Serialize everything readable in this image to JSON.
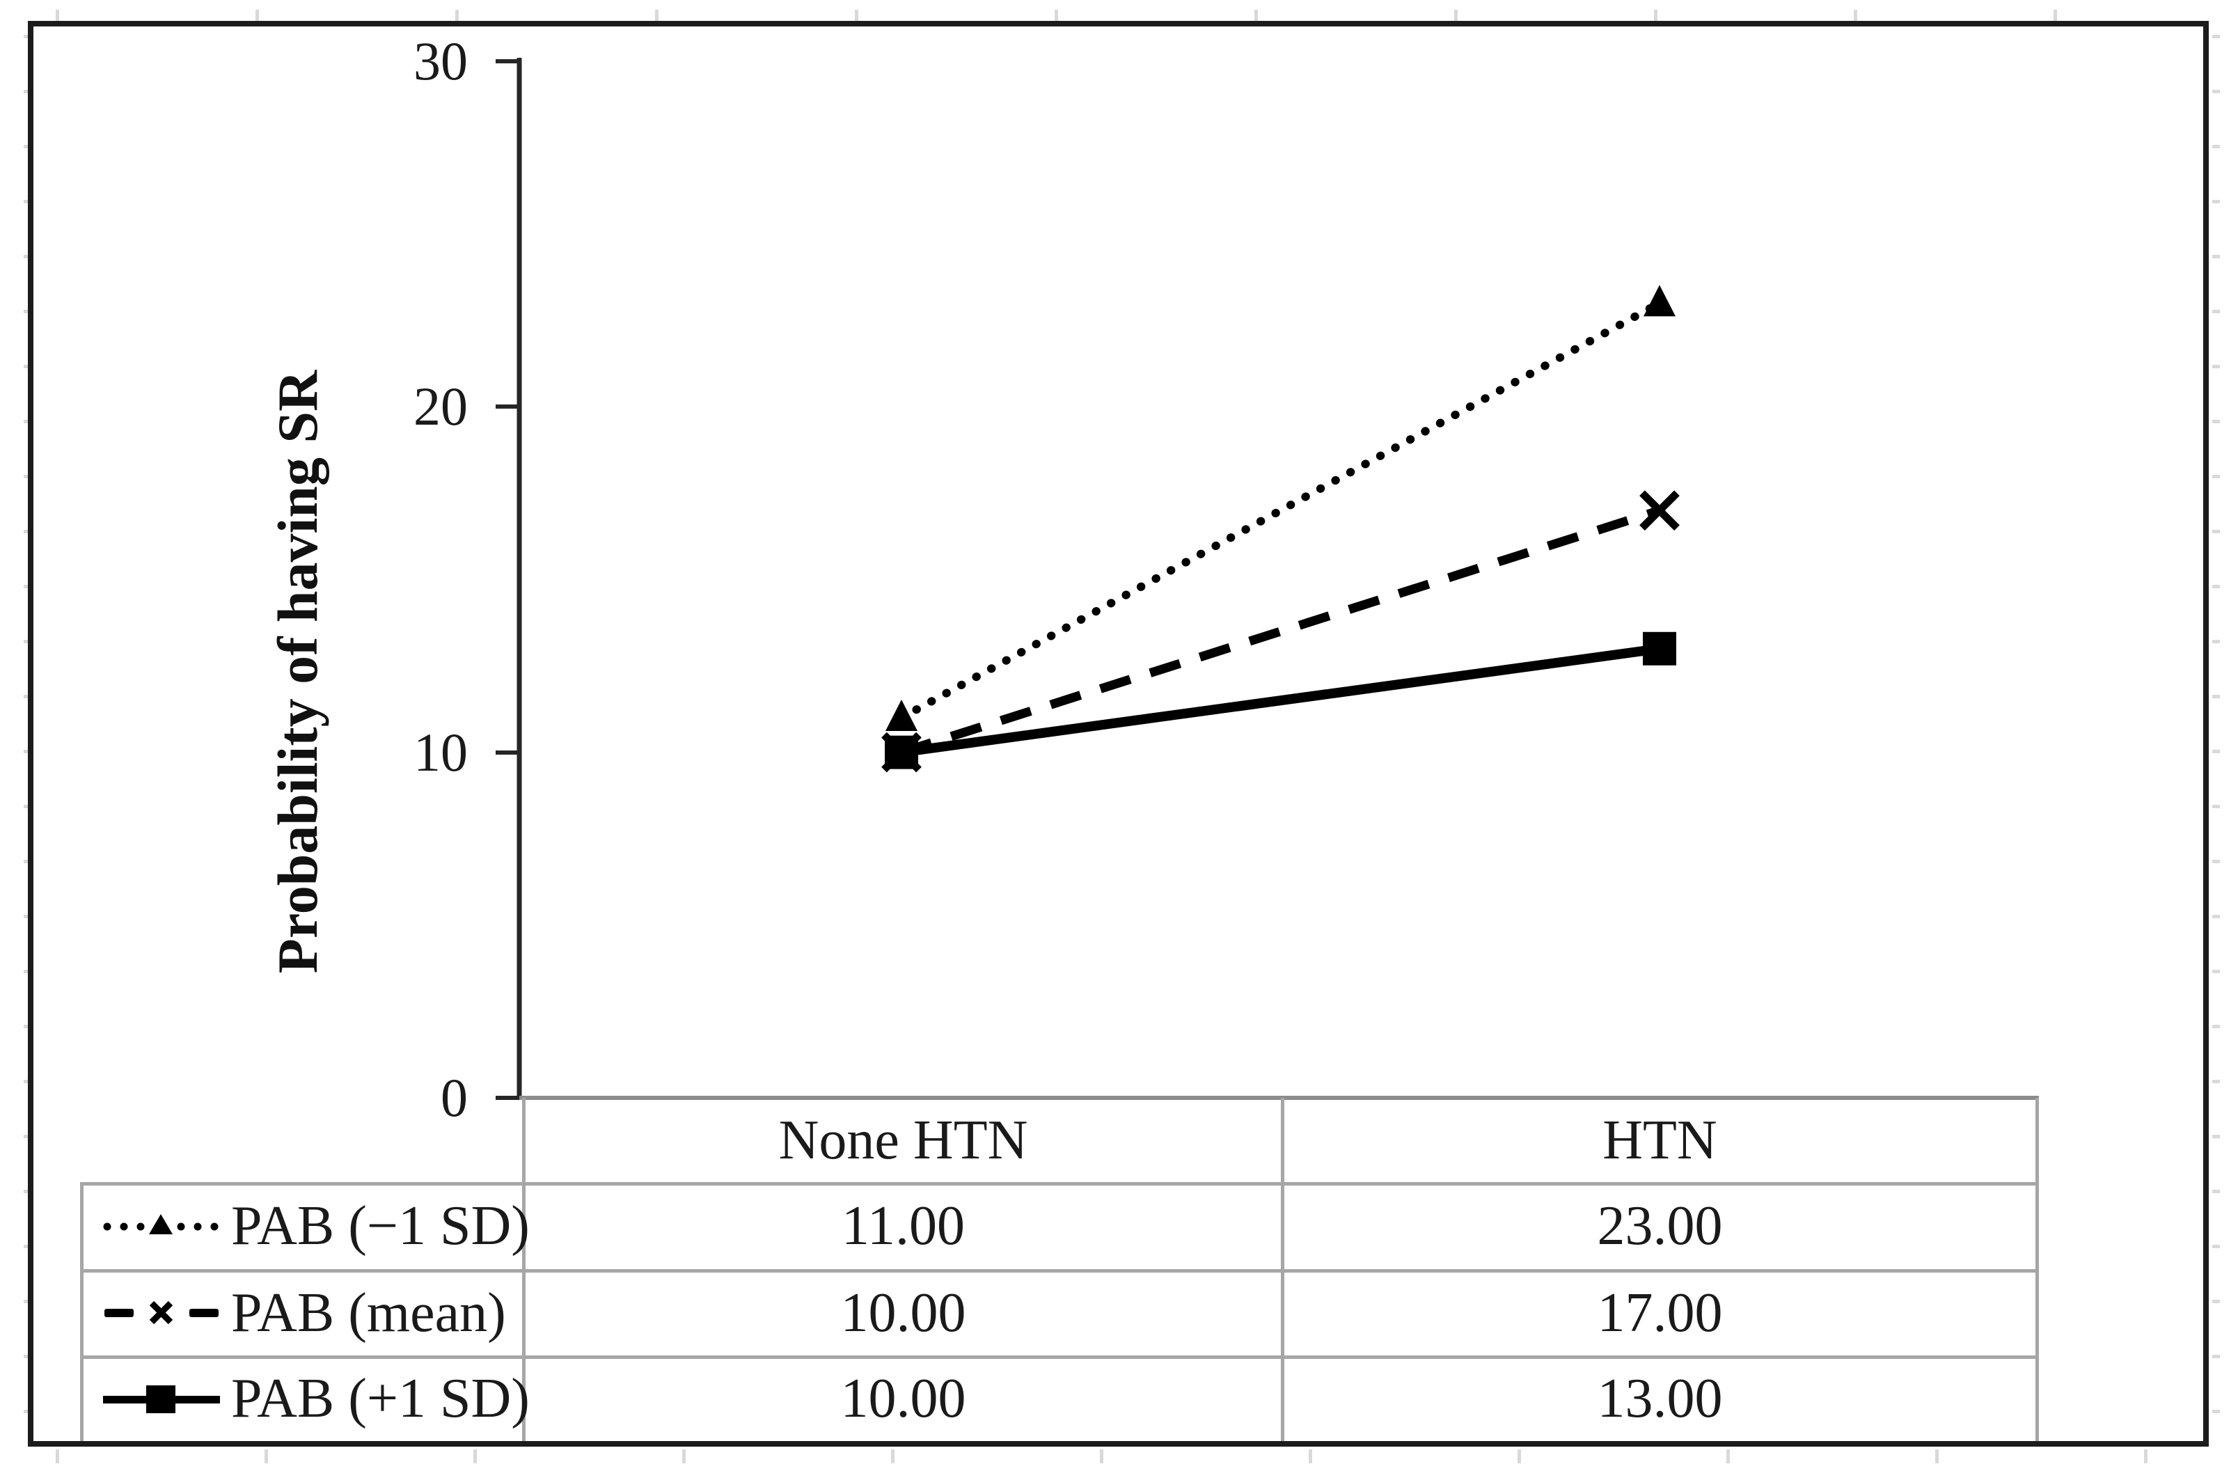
{
  "chart_data": {
    "type": "line",
    "title": "",
    "ylabel": "Probability of having SR",
    "xlabel": "",
    "categories": [
      "None HTN",
      "HTN"
    ],
    "ylim": [
      0,
      30
    ],
    "ytick_labels": [
      "30",
      "20",
      "10",
      "0"
    ],
    "grid": false,
    "legend_position": "left column of attached data table",
    "series": [
      {
        "name": "PAB (−1 SD)",
        "values": [
          11,
          23
        ],
        "line_style": "dotted",
        "marker": "triangle",
        "color": "#000000"
      },
      {
        "name": "PAB (mean)",
        "values": [
          10,
          17
        ],
        "line_style": "dashed",
        "marker": "x",
        "color": "#000000"
      },
      {
        "name": "PAB (+1 SD)",
        "values": [
          10,
          13
        ],
        "line_style": "solid",
        "marker": "square",
        "color": "#000000"
      }
    ]
  },
  "table": {
    "col_headers": [
      "None HTN",
      "HTN"
    ],
    "rows": [
      {
        "label": "PAB (−1 SD)",
        "values": [
          "11.00",
          "23.00"
        ]
      },
      {
        "label": "PAB (mean)",
        "values": [
          "10.00",
          "17.00"
        ]
      },
      {
        "label": "PAB (+1 SD)",
        "values": [
          "10.00",
          "13.00"
        ]
      }
    ]
  },
  "colors": {
    "series": "#000000",
    "table_grid": "#a6a6a6",
    "axis": "#262626",
    "text": "#1a1a1a"
  }
}
